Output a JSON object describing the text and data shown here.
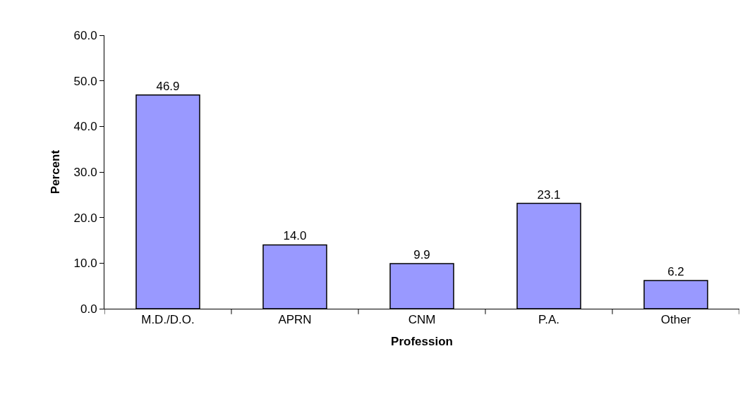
{
  "chart_data": {
    "type": "bar",
    "xlabel": "Profession",
    "ylabel": "Percent",
    "categories": [
      "M.D./D.O.",
      "APRN",
      "CNM",
      "P.A.",
      "Other"
    ],
    "values": [
      46.9,
      14.0,
      9.9,
      23.1,
      6.2
    ],
    "value_labels": [
      "46.9",
      "14.0",
      "9.9",
      "23.1",
      "6.2"
    ],
    "color": "#9999ff",
    "legend": false,
    "ylim": [
      0,
      60
    ],
    "yticks": [
      {
        "value": 0,
        "label": "0.0"
      },
      {
        "value": 10,
        "label": "10.0"
      },
      {
        "value": 20,
        "label": "20.0"
      },
      {
        "value": 30,
        "label": "30.0"
      },
      {
        "value": 40,
        "label": "40.0"
      },
      {
        "value": 50,
        "label": "50.0"
      },
      {
        "value": 60,
        "label": "60.0"
      }
    ]
  }
}
